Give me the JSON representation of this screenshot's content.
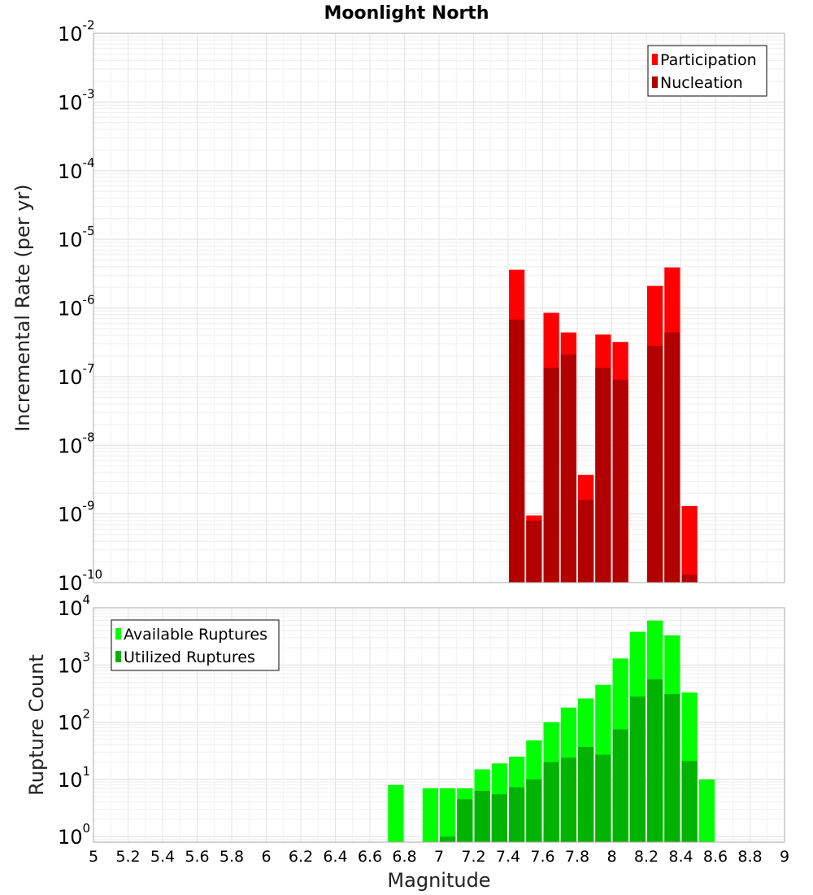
{
  "chart_data": [
    {
      "type": "bar",
      "title": "Moonlight North",
      "ylabel": "Incremental Rate (per yr)",
      "xlabel": "",
      "xlim": [
        5,
        9
      ],
      "ylim": [
        1e-10,
        0.01
      ],
      "yscale": "log",
      "grid": true,
      "legend": "top-right",
      "bin_width": 0.1,
      "y_ticks": [
        {
          "base": "10",
          "exp": "-10",
          "v": 1e-10
        },
        {
          "base": "10",
          "exp": "-9",
          "v": 1e-09
        },
        {
          "base": "10",
          "exp": "-8",
          "v": 1e-08
        },
        {
          "base": "10",
          "exp": "-7",
          "v": 1e-07
        },
        {
          "base": "10",
          "exp": "-6",
          "v": 1e-06
        },
        {
          "base": "10",
          "exp": "-5",
          "v": 1e-05
        },
        {
          "base": "10",
          "exp": "-4",
          "v": 0.0001
        },
        {
          "base": "10",
          "exp": "-3",
          "v": 0.001
        },
        {
          "base": "10",
          "exp": "-2",
          "v": 0.01
        }
      ],
      "series": [
        {
          "name": "Participation",
          "color": "#ff0000",
          "x": [
            7.45,
            7.55,
            7.65,
            7.75,
            7.85,
            7.95,
            8.05,
            8.25,
            8.35,
            8.45
          ],
          "values": [
            3.6e-06,
            9.5e-10,
            8.5e-07,
            4.4e-07,
            3.7e-09,
            4.1e-07,
            3.2e-07,
            2.1e-06,
            3.9e-06,
            1.3e-09
          ]
        },
        {
          "name": "Nucleation",
          "color": "#b20000",
          "x": [
            7.45,
            7.55,
            7.65,
            7.75,
            7.85,
            7.95,
            8.05,
            8.25,
            8.35,
            8.45
          ],
          "values": [
            6.8e-07,
            8e-10,
            1.35e-07,
            2.1e-07,
            1.6e-09,
            1.35e-07,
            9e-08,
            2.8e-07,
            4.4e-07,
            1.3e-10
          ]
        }
      ]
    },
    {
      "type": "bar",
      "title": "",
      "ylabel": "Rupture Count",
      "xlabel": "Magnitude",
      "xlim": [
        5,
        9
      ],
      "ylim": [
        0.8,
        10000.0
      ],
      "yscale": "log",
      "grid": true,
      "legend": "top-left",
      "bin_width": 0.1,
      "x_ticks": [
        "5",
        "5.2",
        "5.4",
        "5.6",
        "5.8",
        "6",
        "6.2",
        "6.4",
        "6.6",
        "6.8",
        "7",
        "7.2",
        "7.4",
        "7.6",
        "7.8",
        "8",
        "8.2",
        "8.4",
        "8.6",
        "8.8",
        "9"
      ],
      "y_ticks": [
        {
          "base": "10",
          "exp": "0",
          "v": 1
        },
        {
          "base": "10",
          "exp": "1",
          "v": 10
        },
        {
          "base": "10",
          "exp": "2",
          "v": 100
        },
        {
          "base": "10",
          "exp": "3",
          "v": 1000
        },
        {
          "base": "10",
          "exp": "4",
          "v": 10000
        }
      ],
      "series": [
        {
          "name": "Available Ruptures",
          "color": "#00ff00",
          "x": [
            6.75,
            6.95,
            7.05,
            7.15,
            7.25,
            7.35,
            7.45,
            7.55,
            7.65,
            7.75,
            7.85,
            7.95,
            8.05,
            8.15,
            8.25,
            8.35,
            8.45,
            8.55
          ],
          "values": [
            8,
            7,
            7,
            7,
            15,
            19,
            25,
            48,
            100,
            180,
            260,
            450,
            1300,
            3800,
            6000,
            3300,
            330,
            10
          ]
        },
        {
          "name": "Utilized Ruptures",
          "color": "#00b300",
          "x": [
            7.05,
            7.15,
            7.25,
            7.35,
            7.45,
            7.55,
            7.65,
            7.75,
            7.85,
            7.95,
            8.05,
            8.15,
            8.25,
            8.35,
            8.45
          ],
          "values": [
            1,
            4.5,
            6.3,
            5.5,
            7.3,
            10,
            20,
            24,
            37,
            27,
            75,
            280,
            560,
            310,
            21
          ]
        }
      ]
    }
  ]
}
